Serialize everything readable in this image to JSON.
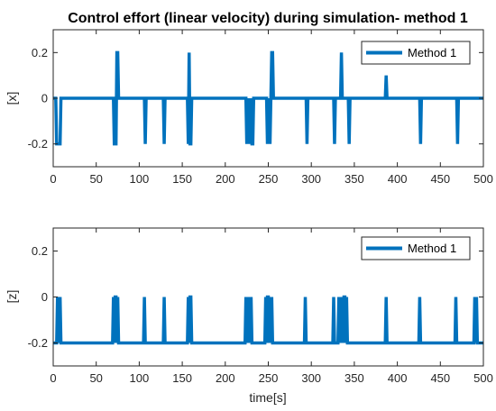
{
  "chart_data": [
    {
      "type": "line",
      "title": "Control effort (linear velocity) during simulation- method 1",
      "xlabel": "",
      "ylabel": "[x]",
      "xlim": [
        0,
        500
      ],
      "ylim": [
        -0.3,
        0.3
      ],
      "x_ticks": [
        "0",
        "50",
        "100",
        "150",
        "200",
        "250",
        "300",
        "350",
        "400",
        "450",
        "500"
      ],
      "y_ticks": [
        "-0.2",
        "0",
        "0.2"
      ],
      "grid": false,
      "legend": "top-right",
      "color": "#0072BD",
      "series": [
        {
          "name": "Method 1",
          "x": [
            0,
            3,
            4,
            8,
            9,
            70,
            71,
            73,
            74,
            75,
            76,
            106,
            107,
            108,
            128,
            129,
            130,
            156,
            157,
            158,
            159,
            160,
            161,
            224,
            225,
            226,
            227,
            228,
            229,
            230,
            231,
            232,
            233,
            248,
            249,
            250,
            252,
            253,
            254,
            255,
            256,
            294,
            295,
            296,
            326,
            327,
            328,
            334,
            335,
            336,
            343,
            344,
            345,
            386,
            387,
            388,
            426,
            427,
            428,
            469,
            470,
            471,
            500
          ],
          "y": [
            0,
            0,
            -0.2,
            -0.2,
            0,
            0,
            -0.2,
            -0.2,
            0.2,
            0.2,
            0,
            0,
            -0.2,
            0,
            0,
            -0.2,
            0,
            0,
            -0.2,
            0.2,
            -0.2,
            -0.2,
            0,
            0,
            -0.2,
            0,
            -0.2,
            0,
            -0.2,
            0,
            -0.2,
            -0.2,
            0,
            0,
            -0.2,
            0,
            -0.2,
            0,
            0.2,
            0.2,
            0,
            0,
            -0.2,
            0,
            0,
            -0.2,
            0,
            0,
            0.2,
            0,
            0,
            -0.2,
            0,
            0,
            0.1,
            0,
            0,
            -0.2,
            0,
            0,
            -0.2,
            0,
            0
          ]
        }
      ]
    },
    {
      "type": "line",
      "title": "",
      "xlabel": "time[s]",
      "ylabel": "[z]",
      "xlim": [
        0,
        500
      ],
      "ylim": [
        -0.3,
        0.3
      ],
      "x_ticks": [
        "0",
        "50",
        "100",
        "150",
        "200",
        "250",
        "300",
        "350",
        "400",
        "450",
        "500"
      ],
      "y_ticks": [
        "-0.2",
        "0",
        "0.2"
      ],
      "grid": false,
      "legend": "top-right",
      "color": "#0072BD",
      "series": [
        {
          "name": "Method 1",
          "x": [
            0,
            4,
            5,
            7,
            8,
            9,
            10,
            69,
            70,
            71,
            72,
            73,
            74,
            75,
            76,
            105,
            106,
            107,
            128,
            129,
            130,
            156,
            157,
            158,
            159,
            160,
            161,
            162,
            223,
            224,
            225,
            226,
            227,
            228,
            229,
            230,
            231,
            232,
            246,
            247,
            248,
            249,
            250,
            251,
            252,
            253,
            254,
            255,
            292,
            293,
            294,
            325,
            326,
            327,
            331,
            332,
            333,
            334,
            335,
            336,
            337,
            338,
            339,
            340,
            341,
            342,
            343,
            386,
            387,
            388,
            389,
            425,
            426,
            427,
            428,
            467,
            468,
            469,
            489,
            490,
            491,
            492,
            493,
            500
          ],
          "y": [
            -0.2,
            -0.2,
            0,
            -0.2,
            0,
            -0.2,
            -0.2,
            -0.2,
            0,
            -0.2,
            0,
            0,
            -0.2,
            0,
            -0.2,
            -0.2,
            0,
            -0.2,
            -0.2,
            0,
            -0.2,
            -0.2,
            0,
            -0.2,
            0,
            0,
            -0.2,
            -0.2,
            -0.2,
            0,
            -0.2,
            0,
            -0.2,
            0,
            -0.2,
            0,
            -0.2,
            -0.2,
            -0.2,
            0,
            -0.2,
            0,
            0,
            -0.2,
            0,
            -0.2,
            0,
            -0.2,
            -0.2,
            0,
            -0.2,
            -0.2,
            0,
            -0.2,
            -0.2,
            0,
            -0.2,
            0,
            -0.2,
            0,
            -0.2,
            0,
            0,
            -0.2,
            0,
            -0.2,
            -0.2,
            -0.2,
            0,
            -0.2,
            -0.2,
            -0.2,
            0,
            -0.2,
            -0.2,
            -0.2,
            0,
            -0.2,
            -0.2,
            0,
            -0.2,
            0,
            -0.2,
            -0.2
          ]
        }
      ]
    }
  ]
}
